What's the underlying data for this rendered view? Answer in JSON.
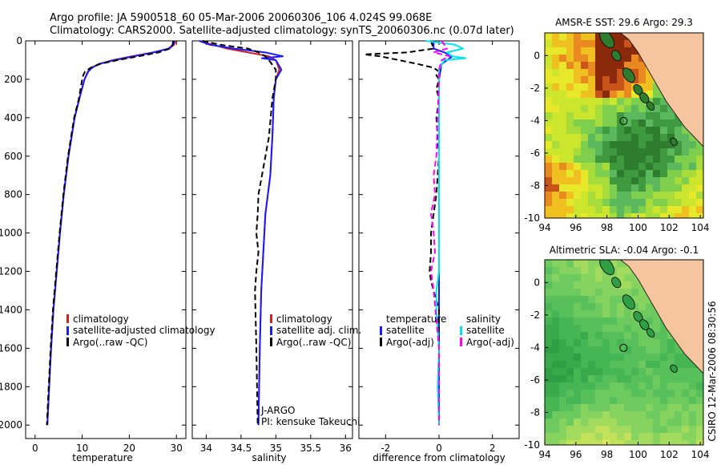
{
  "header": {
    "line1": "Argo profile: JA 5900518_60 05-Mar-2006 20060306_106 4.024S 99.068E",
    "line2": "Climatology: CARS2000. Satellite-adjusted climatology: synTS_20060306.nc (0.07d later)"
  },
  "footer": {
    "credit": "CSIRO 12-Mar-2006 08:30:56"
  },
  "colors": {
    "climatology": "#d62020",
    "satellite": "#1a1aff",
    "argo": "#000000",
    "satellite_salinity": "#00e5ee",
    "argo_salinity_adj": "#ff00ff",
    "land": "#f5c59f"
  },
  "chart_data": [
    {
      "id": "temperature",
      "type": "line",
      "xlabel": "temperature",
      "xlim": [
        -2,
        32
      ],
      "xticks": [
        "0",
        "10",
        "20",
        "30"
      ],
      "xtick_values": [
        0,
        10,
        20,
        30
      ],
      "ylim": [
        0,
        2070
      ],
      "yticks": [
        "0",
        "200",
        "400",
        "600",
        "800",
        "1000",
        "1200",
        "1400",
        "1600",
        "1800",
        "2000"
      ],
      "ytick_values": [
        0,
        200,
        400,
        600,
        800,
        1000,
        1200,
        1400,
        1600,
        1800,
        2000
      ],
      "legend": [
        "climatology",
        "satellite-adjusted climatology",
        "Argo(..raw -QC)"
      ],
      "series": [
        {
          "name": "climatology",
          "style": "solid",
          "color": "#d62020",
          "depth": [
            0,
            20,
            40,
            60,
            80,
            100,
            120,
            140,
            160,
            200,
            300,
            400,
            600,
            800,
            1000,
            1200,
            1400,
            1600,
            1800,
            2000
          ],
          "values": [
            29.8,
            29.5,
            28.5,
            25,
            20.5,
            16.5,
            13.5,
            12,
            11.2,
            10.5,
            9.4,
            8.4,
            7.1,
            6.1,
            5.3,
            4.6,
            3.9,
            3.4,
            3,
            2.6
          ]
        },
        {
          "name": "satellite-adjusted climatology",
          "style": "solid",
          "color": "#1a1aff",
          "depth": [
            0,
            20,
            40,
            60,
            80,
            100,
            120,
            140,
            160,
            200,
            300,
            400,
            600,
            800,
            1000,
            1200,
            1400,
            1600,
            1800,
            2000
          ],
          "values": [
            29.6,
            29.3,
            28.3,
            25.2,
            21,
            16.8,
            13.6,
            12.1,
            11.3,
            10.5,
            9.4,
            8.4,
            7.1,
            6.1,
            5.3,
            4.6,
            3.9,
            3.4,
            3,
            2.6
          ]
        },
        {
          "name": "Argo(..raw -QC)",
          "style": "dashed",
          "color": "#000000",
          "depth": [
            0,
            20,
            40,
            60,
            80,
            100,
            120,
            140,
            160,
            180,
            200,
            300,
            400,
            600,
            800,
            1000,
            1200,
            1400,
            1600,
            1800,
            2000
          ],
          "values": [
            29.3,
            29.2,
            28.6,
            26.2,
            22,
            17.5,
            13.8,
            11.8,
            10.6,
            10.2,
            10.0,
            9.3,
            8.3,
            7.0,
            6.0,
            5.2,
            4.5,
            3.8,
            3.3,
            2.9,
            2.5
          ]
        }
      ]
    },
    {
      "id": "salinity",
      "type": "line",
      "xlabel": "salinity",
      "xlim": [
        33.8,
        36.1
      ],
      "xticks": [
        "34",
        "34.5",
        "35",
        "35.5",
        "36"
      ],
      "xtick_values": [
        34,
        34.5,
        35,
        35.5,
        36
      ],
      "ylim": [
        0,
        2070
      ],
      "legend": [
        "climatology",
        "satellite adj. clim.",
        "Argo(..raw -QC)"
      ],
      "annotation": [
        "J-ARGO",
        "PI: kensuke Takeuchi"
      ],
      "series": [
        {
          "name": "climatology",
          "style": "solid",
          "color": "#d62020",
          "depth": [
            0,
            20,
            40,
            60,
            80,
            100,
            150,
            200,
            300,
            500,
            700,
            900,
            1100,
            1300,
            1600,
            2000
          ],
          "values": [
            33.9,
            34.1,
            34.3,
            34.6,
            34.9,
            35.0,
            35.05,
            35.0,
            34.97,
            34.95,
            34.92,
            34.85,
            34.82,
            34.79,
            34.77,
            34.75
          ]
        },
        {
          "name": "satellite adj. clim.",
          "style": "solid",
          "color": "#1a1aff",
          "depth": [
            0,
            20,
            40,
            60,
            80,
            90,
            100,
            150,
            200,
            300,
            500,
            700,
            900,
            1100,
            1300,
            1600,
            2000
          ],
          "values": [
            33.9,
            34.05,
            34.4,
            34.85,
            35.1,
            34.8,
            35.0,
            35.08,
            35.0,
            34.97,
            34.95,
            34.92,
            34.85,
            34.82,
            34.79,
            34.77,
            34.75
          ]
        },
        {
          "name": "Argo(..raw -QC)",
          "style": "dashed",
          "color": "#000000",
          "depth": [
            0,
            20,
            40,
            60,
            80,
            100,
            150,
            200,
            300,
            500,
            700,
            800,
            900,
            1000,
            1100,
            1200,
            1300,
            1600,
            2000
          ],
          "values": [
            33.95,
            34.2,
            34.6,
            34.75,
            34.85,
            34.9,
            35.0,
            35.0,
            34.95,
            34.9,
            34.8,
            34.75,
            34.74,
            34.72,
            34.75,
            34.72,
            34.7,
            34.72,
            34.74
          ]
        }
      ]
    },
    {
      "id": "difference",
      "type": "line",
      "xlabel": "difference from climatology",
      "xlim": [
        -3.0,
        3.0
      ],
      "xticks": [
        "-2",
        "0",
        "2"
      ],
      "xtick_values": [
        -2,
        0,
        2
      ],
      "ylim": [
        0,
        2070
      ],
      "legend_headers": [
        "temperature",
        "salinity"
      ],
      "legend": [
        "satellite",
        "Argo(-adj)",
        "satellite",
        "Argo(-adj)"
      ],
      "series": [
        {
          "name": "temperature satellite",
          "style": "solid",
          "color": "#1a1aff",
          "depth": [
            0,
            40,
            60,
            80,
            100,
            120,
            200,
            400,
            800,
            1200,
            1600,
            2000
          ],
          "values": [
            -0.2,
            -0.2,
            0.2,
            0.5,
            0.3,
            0.1,
            0.0,
            0.0,
            0.0,
            0.0,
            0.0,
            0.0
          ]
        },
        {
          "name": "temperature Argo(-adj)",
          "style": "dashed",
          "color": "#000000",
          "depth": [
            0,
            40,
            60,
            70,
            80,
            100,
            120,
            140,
            160,
            180,
            200,
            250,
            300,
            400,
            600,
            800,
            900,
            1000,
            1100,
            1200,
            1250,
            1300,
            1400,
            1600,
            2000
          ],
          "values": [
            -0.3,
            -0.2,
            -1.2,
            -2.8,
            -2.2,
            -1.5,
            -0.8,
            -0.2,
            0.0,
            -0.1,
            0.0,
            -0.1,
            0.0,
            -0.1,
            0.0,
            -0.1,
            -0.2,
            -0.3,
            -0.3,
            -0.35,
            -0.3,
            -0.2,
            0.0,
            0.0,
            0.0
          ]
        },
        {
          "name": "salinity satellite",
          "style": "solid",
          "color": "#00e5ee",
          "depth": [
            0,
            20,
            40,
            60,
            80,
            90,
            100,
            150,
            200,
            400,
            800,
            1200,
            1300,
            1400,
            1600,
            1800,
            2000
          ],
          "values": [
            -0.5,
            0.6,
            0.9,
            0.3,
            0.5,
            1.0,
            0.2,
            0.0,
            0.0,
            0.0,
            0.0,
            0.0,
            -0.1,
            -0.1,
            0.0,
            -0.05,
            0.0
          ]
        },
        {
          "name": "salinity Argo(-adj)",
          "style": "dashed",
          "color": "#ff00ff",
          "depth": [
            0,
            40,
            60,
            80,
            100,
            150,
            200,
            400,
            600,
            700,
            800,
            900,
            1000,
            1100,
            1200,
            1300,
            1600,
            2000
          ],
          "values": [
            0.1,
            0.3,
            -0.2,
            0.4,
            0.1,
            0.0,
            0.0,
            -0.05,
            -0.1,
            -0.2,
            -0.15,
            -0.3,
            -0.2,
            -0.15,
            -0.3,
            -0.2,
            0.0,
            0.0
          ]
        }
      ]
    },
    {
      "id": "sst_map",
      "type": "heatmap",
      "title": "AMSR-E SST: 29.6 Argo: 29.3",
      "xlim": [
        94,
        104.2
      ],
      "ylim": [
        -10,
        1.4
      ],
      "xticks": [
        "94",
        "96",
        "98",
        "100",
        "102",
        "104"
      ],
      "xtick_values": [
        94,
        96,
        98,
        100,
        102,
        104
      ],
      "yticks": [
        "0",
        "-2",
        "-4",
        "-6",
        "-8",
        "-10"
      ],
      "ytick_values": [
        0,
        -2,
        -4,
        -6,
        -8,
        -10
      ],
      "argo_position": {
        "lon": 99.068,
        "lat": -4.024
      }
    },
    {
      "id": "sla_map",
      "type": "heatmap",
      "title": "Altimetric SLA: -0.04 Argo: -0.1",
      "xlim": [
        94,
        104.2
      ],
      "ylim": [
        -10,
        1.4
      ],
      "xticks": [
        "94",
        "96",
        "98",
        "100",
        "102",
        "104"
      ],
      "xtick_values": [
        94,
        96,
        98,
        100,
        102,
        104
      ],
      "yticks": [
        "0",
        "-2",
        "-4",
        "-6",
        "-8",
        "-10"
      ],
      "ytick_values": [
        0,
        -2,
        -4,
        -6,
        -8,
        -10
      ],
      "argo_position": {
        "lon": 99.068,
        "lat": -4.024
      }
    }
  ]
}
